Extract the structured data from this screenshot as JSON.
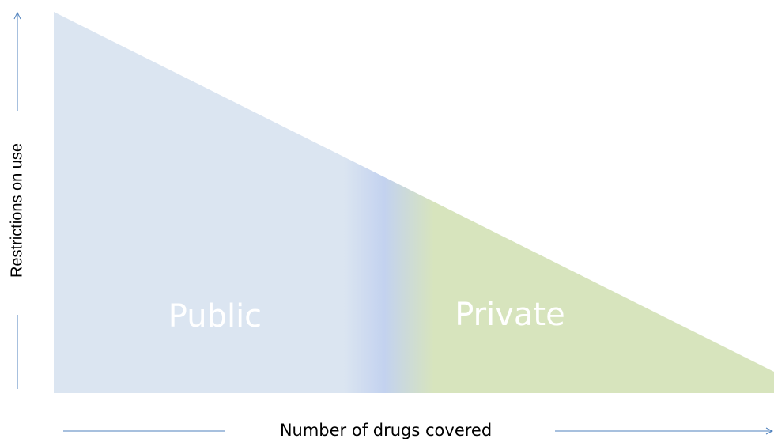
{
  "regions": [
    {
      "label": "Public"
    },
    {
      "label": "Private"
    }
  ],
  "axes": {
    "y_label": "Restrictions on use",
    "x_label": "Number of drugs covered"
  }
}
